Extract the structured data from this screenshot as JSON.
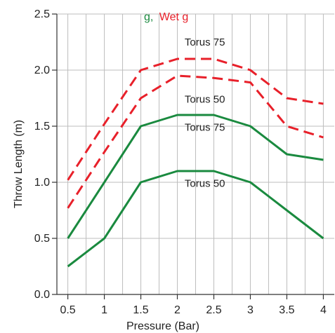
{
  "chart_data": {
    "type": "line",
    "title": "",
    "xlabel": "Pressure (Bar)",
    "ylabel": "Throw Length (m)",
    "xlim": [
      0.35,
      4.15
    ],
    "ylim": [
      0,
      2.5
    ],
    "x_ticks": [
      "0.5",
      "1",
      "1.5",
      "2",
      "2.5",
      "3",
      "3.5",
      "4"
    ],
    "y_ticks": [
      "0.0",
      "0.5",
      "1.0",
      "1.5",
      "2.0",
      "2.5"
    ],
    "grid": true,
    "legend": {
      "placement": "top-right (partially cut off)",
      "entries": [
        {
          "text": "g,",
          "color": "#1a8a3f"
        },
        {
          "text": "Wet",
          "color": "#e8202a"
        },
        {
          "text": "g",
          "color": "#e8202a"
        }
      ]
    },
    "series": [
      {
        "label": "Torus 75",
        "style": "dashed",
        "color": "#e8202a",
        "x": [
          0.5,
          1,
          1.5,
          2,
          2.5,
          3,
          3.5,
          4
        ],
        "values": [
          1.02,
          1.52,
          2.0,
          2.1,
          2.1,
          2.0,
          1.75,
          1.7
        ]
      },
      {
        "label": "Torus 50",
        "style": "dashed",
        "color": "#e8202a",
        "x": [
          0.5,
          1,
          1.5,
          2,
          2.5,
          3,
          3.5,
          4
        ],
        "values": [
          0.77,
          1.27,
          1.75,
          1.95,
          1.93,
          1.89,
          1.5,
          1.4
        ]
      },
      {
        "label": "Torus 75",
        "style": "solid",
        "color": "#1a8a3f",
        "x": [
          0.5,
          1,
          1.5,
          2,
          2.5,
          3,
          3.5,
          4
        ],
        "values": [
          0.5,
          1.0,
          1.5,
          1.6,
          1.6,
          1.5,
          1.25,
          1.2
        ]
      },
      {
        "label": "Torus 50",
        "style": "solid",
        "color": "#1a8a3f",
        "x": [
          0.5,
          1,
          1.5,
          2,
          2.5,
          3,
          3.5,
          4
        ],
        "values": [
          0.25,
          0.5,
          1.0,
          1.1,
          1.1,
          1.0,
          0.75,
          0.5
        ]
      }
    ]
  }
}
